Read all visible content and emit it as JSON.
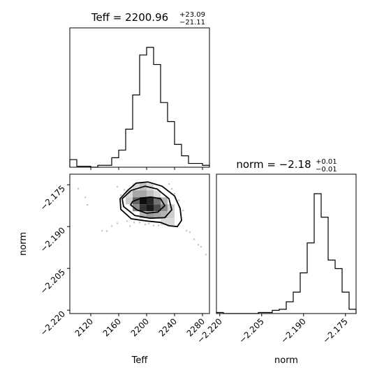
{
  "chart_data": {
    "type": "corner",
    "parameters": [
      "Teff",
      "norm"
    ],
    "titles": {
      "teff": {
        "main": "Teff = 2200.96",
        "plus": "+23.09",
        "minus": "−21.11"
      },
      "norm": {
        "main": "norm = −2.18",
        "plus": "+0.01",
        "minus": "−0.01"
      }
    },
    "x_labels": {
      "teff": "Teff",
      "norm": "norm"
    },
    "y_label": "norm",
    "teff_ticks": [
      "2120",
      "2160",
      "2200",
      "2240",
      "2280"
    ],
    "norm_x_ticks": [
      "−2.220",
      "−2.205",
      "−2.190",
      "−2.175"
    ],
    "norm_y_ticks": [
      "−2.175",
      "−2.190",
      "−2.205",
      "−2.220"
    ],
    "teff_range": [
      2090,
      2290
    ],
    "norm_range": [
      -2.2212,
      -2.1712
    ],
    "teff_hist": {
      "bin_edges": [
        2090,
        2100,
        2110,
        2120,
        2130,
        2140,
        2150,
        2160,
        2170,
        2180,
        2190,
        2200,
        2210,
        2220,
        2230,
        2240,
        2250,
        2260,
        2270,
        2280,
        2290
      ],
      "counts": [
        8,
        1,
        1,
        0,
        2,
        2,
        10,
        18,
        40,
        76,
        118,
        126,
        108,
        68,
        48,
        24,
        12,
        4,
        4,
        2
      ]
    },
    "norm_hist": {
      "bin_edges": [
        -2.2212,
        -2.2187,
        -2.2162,
        -2.2137,
        -2.2112,
        -2.2087,
        -2.2062,
        -2.2037,
        -2.2012,
        -2.1987,
        -2.1962,
        -2.1937,
        -2.1912,
        -2.1887,
        -2.1862,
        -2.1837,
        -2.1812,
        -2.1787,
        -2.1762,
        -2.1737,
        -2.1712
      ],
      "counts": [
        1,
        0,
        0,
        0,
        0,
        0,
        1,
        1,
        3,
        4,
        11,
        20,
        38,
        66,
        112,
        90,
        50,
        42,
        20,
        4
      ]
    },
    "density_cells": [
      [
        2180,
        -2.177,
        0.15
      ],
      [
        2190,
        -2.177,
        0.25
      ],
      [
        2200,
        -2.177,
        0.15
      ],
      [
        2170,
        -2.1795,
        0.15
      ],
      [
        2180,
        -2.1795,
        0.35
      ],
      [
        2190,
        -2.1795,
        0.35
      ],
      [
        2200,
        -2.1795,
        0.25
      ],
      [
        2210,
        -2.1795,
        0.15
      ],
      [
        2170,
        -2.182,
        0.2
      ],
      [
        2180,
        -2.182,
        0.6
      ],
      [
        2190,
        -2.182,
        0.95
      ],
      [
        2200,
        -2.182,
        0.85
      ],
      [
        2210,
        -2.182,
        0.55
      ],
      [
        2220,
        -2.182,
        0.3
      ],
      [
        2180,
        -2.1845,
        0.45
      ],
      [
        2190,
        -2.1845,
        0.8
      ],
      [
        2200,
        -2.1845,
        0.9
      ],
      [
        2210,
        -2.1845,
        0.7
      ],
      [
        2220,
        -2.1845,
        0.45
      ],
      [
        2230,
        -2.1845,
        0.2
      ],
      [
        2190,
        -2.187,
        0.3
      ],
      [
        2200,
        -2.187,
        0.4
      ],
      [
        2210,
        -2.187,
        0.35
      ],
      [
        2220,
        -2.187,
        0.3
      ],
      [
        2230,
        -2.187,
        0.2
      ],
      [
        2220,
        -2.1895,
        0.15
      ],
      [
        2230,
        -2.1895,
        0.15
      ]
    ],
    "contours": [
      {
        "level": "inner",
        "points": [
          [
            2180,
            -2.181
          ],
          [
            2192,
            -2.1798
          ],
          [
            2206,
            -2.1794
          ],
          [
            2220,
            -2.18
          ],
          [
            2226,
            -2.1825
          ],
          [
            2216,
            -2.1848
          ],
          [
            2200,
            -2.1852
          ],
          [
            2186,
            -2.184
          ],
          [
            2177,
            -2.1822
          ]
        ]
      },
      {
        "level": "middle",
        "points": [
          [
            2165,
            -2.18
          ],
          [
            2178,
            -2.177
          ],
          [
            2198,
            -2.1755
          ],
          [
            2215,
            -2.1765
          ],
          [
            2232,
            -2.18
          ],
          [
            2236,
            -2.184
          ],
          [
            2226,
            -2.1868
          ],
          [
            2205,
            -2.187
          ],
          [
            2183,
            -2.186
          ],
          [
            2167,
            -2.1828
          ]
        ]
      },
      {
        "level": "outer",
        "points": [
          [
            2173,
            -2.177
          ],
          [
            2185,
            -2.1744
          ],
          [
            2202,
            -2.174
          ],
          [
            2222,
            -2.1755
          ],
          [
            2240,
            -2.179
          ],
          [
            2248,
            -2.1835
          ],
          [
            2250,
            -2.1878
          ],
          [
            2244,
            -2.19
          ],
          [
            2232,
            -2.1897
          ],
          [
            2220,
            -2.1885
          ],
          [
            2200,
            -2.188
          ],
          [
            2178,
            -2.1872
          ],
          [
            2163,
            -2.1838
          ],
          [
            2162,
            -2.18
          ]
        ]
      }
    ],
    "outliers": [
      [
        2102,
        -2.1764
      ],
      [
        2112,
        -2.1795
      ],
      [
        2115,
        -2.1822
      ],
      [
        2136,
        -2.1915
      ],
      [
        2143,
        -2.1916
      ],
      [
        2150,
        -2.1898
      ],
      [
        2158,
        -2.1888
      ],
      [
        2163,
        -2.1787
      ],
      [
        2168,
        -2.1768
      ],
      [
        2172,
        -2.188
      ],
      [
        2176,
        -2.1898
      ],
      [
        2182,
        -2.1885
      ],
      [
        2190,
        -2.1885
      ],
      [
        2198,
        -2.1892
      ],
      [
        2203,
        -2.1889
      ],
      [
        2210,
        -2.1896
      ],
      [
        2217,
        -2.1896
      ],
      [
        2232,
        -2.1747
      ],
      [
        2236,
        -2.1764
      ],
      [
        2240,
        -2.1782
      ],
      [
        2246,
        -2.1806
      ],
      [
        2252,
        -2.1842
      ],
      [
        2257,
        -2.1915
      ],
      [
        2262,
        -2.192
      ],
      [
        2268,
        -2.1945
      ],
      [
        2274,
        -2.1965
      ],
      [
        2278,
        -2.1972
      ],
      [
        2285,
        -2.2
      ],
      [
        2158,
        -2.1757
      ]
    ]
  }
}
